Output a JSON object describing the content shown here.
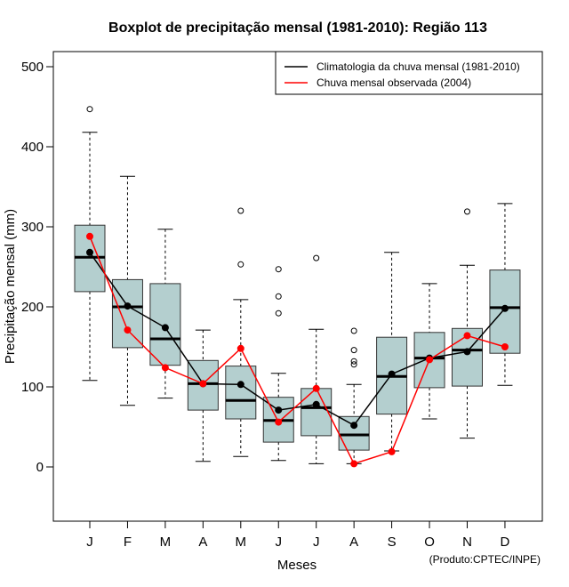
{
  "chart_data": {
    "type": "boxplot",
    "title": "Boxplot de precipitação mensal (1981-2010): Região 113",
    "xlabel": "Meses",
    "ylabel": "Precipitação mensal (mm)",
    "ylim": [
      -68,
      519
    ],
    "yticks": [
      0,
      100,
      200,
      300,
      400,
      500
    ],
    "categories": [
      "J",
      "F",
      "M",
      "A",
      "M",
      "J",
      "J",
      "A",
      "S",
      "O",
      "N",
      "D"
    ],
    "boxes": [
      {
        "whisker_low": 108,
        "q1": 219,
        "median": 262,
        "q3": 302,
        "whisker_high": 418,
        "outliers": [
          447
        ]
      },
      {
        "whisker_low": 77,
        "q1": 149,
        "median": 200,
        "q3": 234,
        "whisker_high": 363,
        "outliers": []
      },
      {
        "whisker_low": 86,
        "q1": 127,
        "median": 160,
        "q3": 229,
        "whisker_high": 297,
        "outliers": []
      },
      {
        "whisker_low": 7,
        "q1": 71,
        "median": 104,
        "q3": 133,
        "whisker_high": 171,
        "outliers": []
      },
      {
        "whisker_low": 13,
        "q1": 60,
        "median": 83,
        "q3": 126,
        "whisker_high": 209,
        "outliers": [
          253,
          320
        ]
      },
      {
        "whisker_low": 8,
        "q1": 31,
        "median": 58,
        "q3": 87,
        "whisker_high": 117,
        "outliers": [
          192,
          213,
          247
        ]
      },
      {
        "whisker_low": 4,
        "q1": 39,
        "median": 74,
        "q3": 98,
        "whisker_high": 172,
        "outliers": [
          261
        ]
      },
      {
        "whisker_low": 4,
        "q1": 21,
        "median": 40,
        "q3": 63,
        "whisker_high": 103,
        "outliers": [
          128,
          132,
          146,
          170
        ]
      },
      {
        "whisker_low": 20,
        "q1": 66,
        "median": 113,
        "q3": 162,
        "whisker_high": 268,
        "outliers": []
      },
      {
        "whisker_low": 60,
        "q1": 99,
        "median": 136,
        "q3": 168,
        "whisker_high": 229,
        "outliers": []
      },
      {
        "whisker_low": 36,
        "q1": 101,
        "median": 146,
        "q3": 173,
        "whisker_high": 252,
        "outliers": [
          319
        ]
      },
      {
        "whisker_low": 102,
        "q1": 142,
        "median": 199,
        "q3": 246,
        "whisker_high": 329,
        "outliers": []
      }
    ],
    "series": [
      {
        "name": "Climatologia da chuva mensal (1981-2010)",
        "color": "#000000",
        "values": [
          268,
          201,
          174,
          104,
          103,
          71,
          78,
          52,
          116,
          136,
          144,
          198
        ]
      },
      {
        "name": "Chuva mensal observada (2004)",
        "color": "#ff0000",
        "values": [
          288,
          171,
          124,
          104,
          148,
          56,
          98,
          4,
          19,
          134,
          164,
          150
        ]
      }
    ],
    "legend_position": "top-right",
    "box_fill": "#b4cfcf",
    "footnote": "(Produto:CPTEC/INPE)"
  }
}
